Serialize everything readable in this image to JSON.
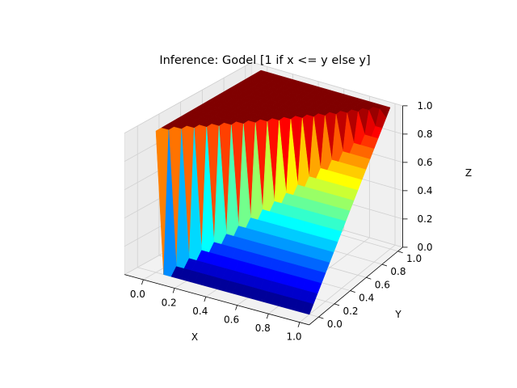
{
  "chart_data": {
    "type": "surface3d",
    "title": "Inference: Godel [1 if x <= y else y]",
    "xlabel": "X",
    "ylabel": "Y",
    "zlabel": "Z",
    "colormap": "jet",
    "xlim": [
      0.0,
      1.0
    ],
    "ylim": [
      0.0,
      1.0
    ],
    "zlim": [
      0.0,
      1.0
    ],
    "x_ticks": [
      "0.0",
      "0.2",
      "0.4",
      "0.6",
      "0.8",
      "1.0"
    ],
    "y_ticks": [
      "0.0",
      "0.2",
      "0.4",
      "0.6",
      "0.8",
      "1.0"
    ],
    "z_ticks": [
      "0.0",
      "0.2",
      "0.4",
      "0.6",
      "0.8",
      "1.0"
    ],
    "grid": true,
    "x_values": [
      0.0,
      0.05,
      0.1,
      0.15,
      0.2,
      0.25,
      0.3,
      0.35,
      0.4,
      0.45,
      0.5,
      0.55,
      0.6,
      0.65,
      0.7,
      0.75,
      0.8,
      0.85,
      0.9,
      0.95,
      1.0
    ],
    "y_values": [
      0.0,
      0.05,
      0.1,
      0.15,
      0.2,
      0.25,
      0.3,
      0.35,
      0.4,
      0.45,
      0.5,
      0.55,
      0.6,
      0.65,
      0.7,
      0.75,
      0.8,
      0.85,
      0.9,
      0.95,
      1.0
    ],
    "z_rule": "1 if x <= y else y"
  }
}
